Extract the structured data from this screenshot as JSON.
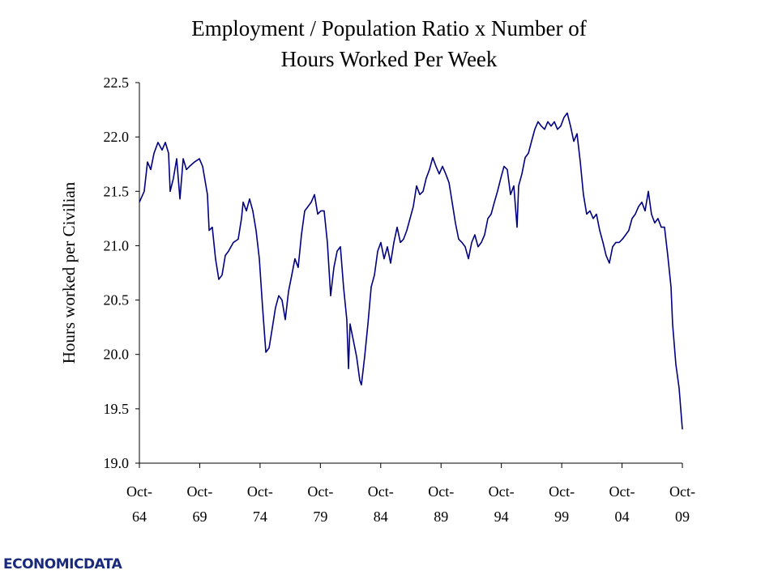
{
  "chart_data": {
    "type": "line",
    "title": [
      "Employment / Population Ratio x Number of",
      "Hours Worked Per Week"
    ],
    "y_label": "Hours worked per Civilian",
    "logo": "ECONOMICDATA",
    "xlim": [
      1964.75,
      2009.75
    ],
    "xticks": [
      {
        "value": 1964.75,
        "label": "Oct-64"
      },
      {
        "value": 1969.75,
        "label": "Oct-69"
      },
      {
        "value": 1974.75,
        "label": "Oct-74"
      },
      {
        "value": 1979.75,
        "label": "Oct-79"
      },
      {
        "value": 1984.75,
        "label": "Oct-84"
      },
      {
        "value": 1989.75,
        "label": "Oct-89"
      },
      {
        "value": 1994.75,
        "label": "Oct-94"
      },
      {
        "value": 1999.75,
        "label": "Oct-99"
      },
      {
        "value": 2004.75,
        "label": "Oct-04"
      },
      {
        "value": 2009.75,
        "label": "Oct-09"
      }
    ],
    "ylim": [
      19,
      22.5
    ],
    "yticks": [
      {
        "value": 19,
        "label": "19.0"
      },
      19.5,
      {
        "value": 20,
        "label": "20.0"
      },
      20.5,
      {
        "value": 21,
        "label": "21.0"
      },
      21.5,
      {
        "value": 22,
        "label": "22.0"
      },
      22.5
    ],
    "grid": false,
    "series": [
      {
        "name": "Hours worked per Civilian",
        "color": "#000080",
        "x": [
          1964.75,
          1965.15,
          1965.42,
          1965.69,
          1965.96,
          1966.29,
          1966.63,
          1966.9,
          1967.17,
          1967.3,
          1967.57,
          1967.84,
          1968.11,
          1968.38,
          1968.65,
          1968.91,
          1969.32,
          1969.72,
          1969.99,
          1970.39,
          1970.53,
          1970.79,
          1971.06,
          1971.33,
          1971.6,
          1971.87,
          1972.14,
          1972.54,
          1972.94,
          1973.21,
          1973.35,
          1973.62,
          1973.88,
          1974.15,
          1974.42,
          1974.69,
          1974.96,
          1975.23,
          1975.5,
          1975.76,
          1976.03,
          1976.3,
          1976.57,
          1976.84,
          1977.11,
          1977.38,
          1977.64,
          1977.91,
          1978.18,
          1978.45,
          1978.72,
          1978.99,
          1979.26,
          1979.53,
          1979.79,
          1980.06,
          1980.33,
          1980.6,
          1980.87,
          1981.14,
          1981.41,
          1981.67,
          1981.94,
          1982.08,
          1982.21,
          1982.48,
          1982.75,
          1983.02,
          1983.15,
          1983.42,
          1983.69,
          1983.96,
          1984.23,
          1984.5,
          1984.76,
          1985.03,
          1985.3,
          1985.57,
          1985.84,
          1986.11,
          1986.38,
          1986.64,
          1986.91,
          1987.18,
          1987.45,
          1987.72,
          1987.99,
          1988.26,
          1988.52,
          1988.79,
          1989.06,
          1989.33,
          1989.6,
          1989.87,
          1990.14,
          1990.41,
          1990.67,
          1990.94,
          1991.21,
          1991.48,
          1991.75,
          1992.02,
          1992.29,
          1992.55,
          1992.82,
          1993.09,
          1993.36,
          1993.63,
          1993.9,
          1994.17,
          1994.43,
          1994.7,
          1994.97,
          1995.24,
          1995.51,
          1995.78,
          1996.05,
          1996.18,
          1996.45,
          1996.72,
          1996.99,
          1997.25,
          1997.52,
          1997.79,
          1998.06,
          1998.33,
          1998.6,
          1998.87,
          1999.14,
          1999.4,
          1999.67,
          1999.94,
          2000.21,
          2000.48,
          2000.75,
          2001.02,
          2001.29,
          2001.55,
          2001.82,
          2002.09,
          2002.36,
          2002.63,
          2002.9,
          2003.17,
          2003.43,
          2003.7,
          2003.97,
          2004.24,
          2004.51,
          2004.78,
          2005.05,
          2005.31,
          2005.58,
          2005.85,
          2006.12,
          2006.39,
          2006.66,
          2006.93,
          2007.19,
          2007.46,
          2007.73,
          2008.0,
          2008.27,
          2008.54,
          2008.81,
          2008.94,
          2009.21,
          2009.48,
          2009.75
        ],
        "values": [
          21.4,
          21.5,
          21.77,
          21.7,
          21.85,
          21.95,
          21.88,
          21.95,
          21.85,
          21.5,
          21.62,
          21.8,
          21.43,
          21.8,
          21.7,
          21.73,
          21.77,
          21.8,
          21.73,
          21.47,
          21.14,
          21.17,
          20.88,
          20.69,
          20.73,
          20.91,
          20.95,
          21.03,
          21.06,
          21.25,
          21.4,
          21.32,
          21.43,
          21.32,
          21.14,
          20.88,
          20.43,
          20.02,
          20.06,
          20.24,
          20.43,
          20.54,
          20.5,
          20.32,
          20.58,
          20.73,
          20.88,
          20.8,
          21.1,
          21.32,
          21.36,
          21.4,
          21.47,
          21.29,
          21.32,
          21.32,
          21.03,
          20.54,
          20.8,
          20.95,
          20.99,
          20.62,
          20.32,
          19.87,
          20.28,
          20.13,
          19.98,
          19.76,
          19.72,
          19.98,
          20.28,
          20.62,
          20.73,
          20.95,
          21.03,
          20.88,
          20.99,
          20.84,
          21.03,
          21.17,
          21.03,
          21.06,
          21.14,
          21.25,
          21.36,
          21.55,
          21.47,
          21.5,
          21.62,
          21.7,
          21.81,
          21.73,
          21.66,
          21.73,
          21.66,
          21.58,
          21.4,
          21.21,
          21.06,
          21.03,
          20.99,
          20.88,
          21.03,
          21.1,
          20.99,
          21.03,
          21.1,
          21.25,
          21.29,
          21.4,
          21.5,
          21.62,
          21.73,
          21.7,
          21.47,
          21.55,
          21.17,
          21.55,
          21.66,
          21.81,
          21.85,
          21.96,
          22.07,
          22.14,
          22.1,
          22.07,
          22.14,
          22.1,
          22.14,
          22.07,
          22.1,
          22.18,
          22.22,
          22.1,
          21.96,
          22.03,
          21.77,
          21.47,
          21.29,
          21.32,
          21.25,
          21.29,
          21.14,
          21.03,
          20.91,
          20.84,
          20.99,
          21.03,
          21.03,
          21.06,
          21.1,
          21.14,
          21.25,
          21.29,
          21.36,
          21.4,
          21.32,
          21.5,
          21.29,
          21.21,
          21.25,
          21.17,
          21.17,
          20.91,
          20.62,
          20.28,
          19.91,
          19.69,
          19.31
        ]
      }
    ]
  }
}
